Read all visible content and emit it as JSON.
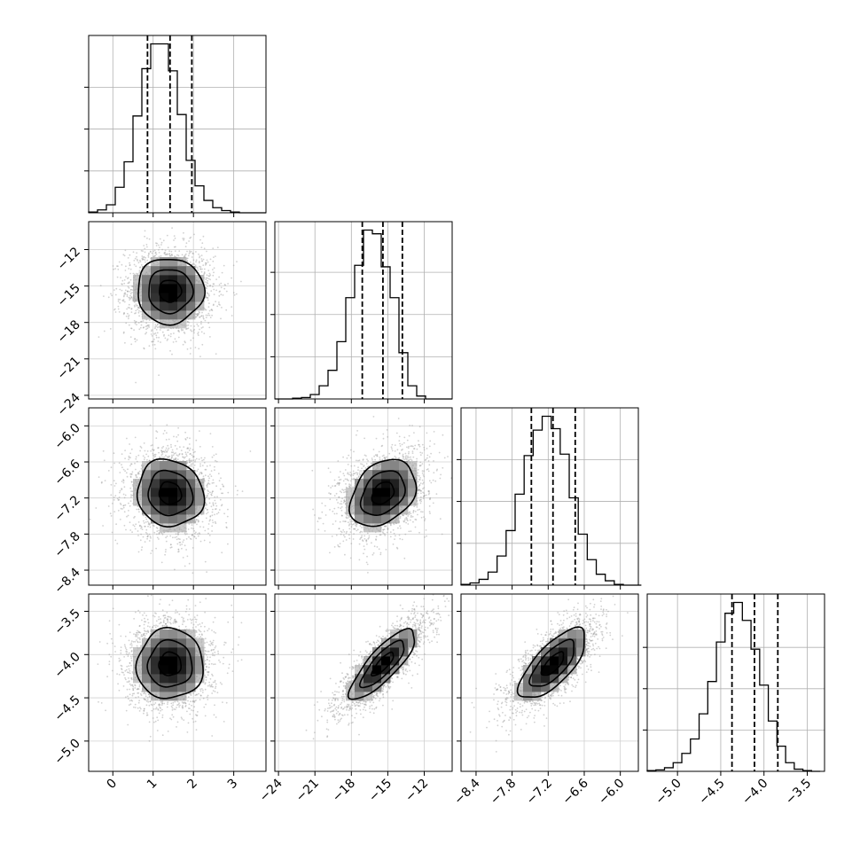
{
  "chart_data": {
    "type": "corner",
    "grid": true,
    "colors": {
      "hist": "#000000",
      "contour": "#000000",
      "density_dark": "#000000",
      "scatter": "#999999"
    },
    "parameters": [
      {
        "ticks": [
          0,
          1,
          2,
          3
        ],
        "tick_labels": [
          "0",
          "1",
          "2",
          "3"
        ],
        "range": [
          -0.6,
          3.8
        ],
        "quantiles": [
          0.86,
          1.42,
          1.96
        ],
        "hist": {
          "edges": [
            -0.6,
            -0.38,
            -0.16,
            0.06,
            0.28,
            0.5,
            0.72,
            0.94,
            1.16,
            1.38,
            1.6,
            1.82,
            2.04,
            2.26,
            2.48,
            2.7,
            2.92,
            3.14,
            3.36,
            3.58,
            3.8
          ],
          "counts": [
            1,
            4,
            11,
            35,
            70,
            133,
            198,
            232,
            232,
            195,
            135,
            72,
            37,
            17,
            7,
            3,
            1,
            0,
            0,
            0
          ]
        }
      },
      {
        "ticks": [
          -24,
          -21,
          -18,
          -15,
          -12
        ],
        "tick_labels": [
          "−24",
          "−21",
          "−18",
          "−15",
          "−12"
        ],
        "range": [
          -24.3,
          -9.7
        ],
        "quantiles": [
          -17.1,
          -15.4,
          -13.8
        ],
        "hist": {
          "edges": [
            -24.3,
            -23.57,
            -22.84,
            -22.11,
            -21.38,
            -20.65,
            -19.92,
            -19.19,
            -18.46,
            -17.73,
            -17.0,
            -16.27,
            -15.54,
            -14.81,
            -14.08,
            -13.35,
            -12.62,
            -11.89,
            -11.16,
            -10.43,
            -9.7
          ],
          "counts": [
            0,
            0,
            1,
            2,
            6,
            18,
            39,
            78,
            138,
            182,
            230,
            225,
            180,
            138,
            63,
            18,
            4,
            0,
            0,
            0
          ]
        }
      },
      {
        "ticks": [
          -8.4,
          -7.8,
          -7.2,
          -6.6,
          -6.0
        ],
        "tick_labels": [
          "−8.4",
          "−7.8",
          "−7.2",
          "−6.6",
          "−6.0"
        ],
        "range": [
          -8.65,
          -5.7
        ],
        "quantiles": [
          -7.48,
          -7.12,
          -6.75
        ],
        "hist": {
          "edges": [
            -8.65,
            -8.5,
            -8.35,
            -8.2,
            -8.05,
            -7.9,
            -7.75,
            -7.6,
            -7.45,
            -7.3,
            -7.15,
            -7.0,
            -6.85,
            -6.7,
            -6.55,
            -6.4,
            -6.25,
            -6.1,
            -5.95,
            -5.8,
            -5.65
          ],
          "counts": [
            1,
            3,
            8,
            18,
            40,
            75,
            125,
            178,
            213,
            232,
            215,
            180,
            120,
            70,
            35,
            15,
            6,
            1,
            0,
            0
          ]
        }
      },
      {
        "ticks": [
          -5.0,
          -4.5,
          -4.0,
          -3.5
        ],
        "tick_labels": [
          "−5.0",
          "−4.5",
          "−4.0",
          "−3.5"
        ],
        "range": [
          -5.35,
          -3.3
        ],
        "quantiles": [
          -4.37,
          -4.11,
          -3.84
        ],
        "hist": {
          "edges": [
            -5.35,
            -5.25,
            -5.15,
            -5.05,
            -4.95,
            -4.85,
            -4.75,
            -4.65,
            -4.55,
            -4.45,
            -4.35,
            -4.25,
            -4.15,
            -4.05,
            -3.95,
            -3.85,
            -3.75,
            -3.65,
            -3.55,
            -3.45,
            -3.35
          ],
          "counts": [
            1,
            2,
            5,
            12,
            25,
            45,
            80,
            125,
            180,
            220,
            235,
            210,
            170,
            120,
            70,
            35,
            12,
            3,
            1,
            0
          ]
        }
      }
    ],
    "pairs": [
      {
        "x": 0,
        "y": 1,
        "mean": [
          1.42,
          -15.4
        ],
        "sd": [
          0.55,
          1.8
        ],
        "corr": 0.0,
        "levels": [
          0.5,
          1.0,
          1.5
        ]
      },
      {
        "x": 0,
        "y": 2,
        "mean": [
          1.42,
          -7.12
        ],
        "sd": [
          0.55,
          0.37
        ],
        "corr": -0.08,
        "levels": [
          0.5,
          1.0,
          1.5
        ]
      },
      {
        "x": 1,
        "y": 2,
        "mean": [
          -15.4,
          -7.12
        ],
        "sd": [
          1.8,
          0.37
        ],
        "corr": 0.32,
        "levels": [
          0.5,
          1.0,
          1.5
        ]
      },
      {
        "x": 0,
        "y": 3,
        "mean": [
          1.42,
          -4.11
        ],
        "sd": [
          0.55,
          0.27
        ],
        "corr": 0.02,
        "levels": [
          0.5,
          1.0,
          1.5
        ]
      },
      {
        "x": 1,
        "y": 3,
        "mean": [
          -15.4,
          -4.11
        ],
        "sd": [
          1.8,
          0.27
        ],
        "corr": 0.82,
        "levels": [
          0.5,
          1.0,
          1.5
        ]
      },
      {
        "x": 2,
        "y": 3,
        "mean": [
          -7.12,
          -4.11
        ],
        "sd": [
          0.37,
          0.27
        ],
        "corr": 0.72,
        "levels": [
          0.5,
          1.0,
          1.5
        ]
      }
    ]
  }
}
